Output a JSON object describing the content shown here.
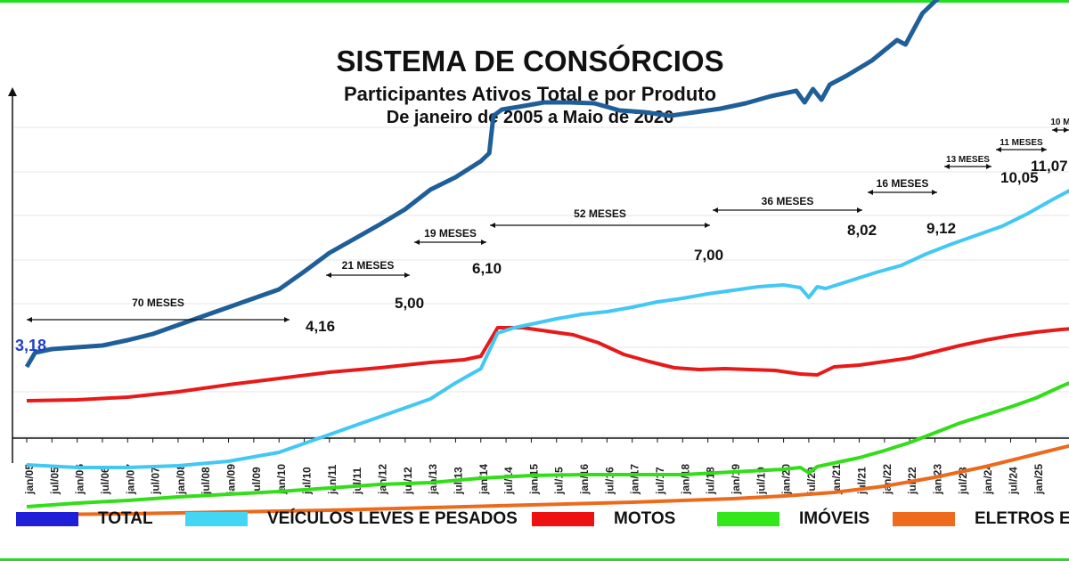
{
  "chart_data": {
    "type": "line",
    "title": "SISTEMA DE CONSÓRCIOS",
    "subtitle": "Participantes Ativos Total e por Produto",
    "subtitle2": "De janeiro de 2005 a Maio de 2026",
    "x_tick_labels": [
      "jan/05",
      "jul/05",
      "jan/06",
      "jul/06",
      "jan/07",
      "jul/07",
      "jan/08",
      "jul/08",
      "jan/09",
      "jul/09",
      "jan/10",
      "jul/10",
      "jan/11",
      "jul/11",
      "jan/12",
      "jul/12",
      "jan/13",
      "jul/13",
      "jan/14",
      "jul/14",
      "jan/15",
      "jul/15",
      "jan/16",
      "jul/16",
      "jan/17",
      "jul/17",
      "jan/18",
      "jul/18",
      "jan/19",
      "jul/19",
      "jan/20",
      "jul/20",
      "jan/21",
      "jul/21",
      "jan/22",
      "jul/22",
      "jan/23",
      "jul/23",
      "jan/24",
      "jul/24",
      "jan/25"
    ],
    "y_tick_labels": [
      "",
      "",
      "",
      "",
      "",
      "",
      "",
      "",
      ""
    ],
    "grid": true,
    "legend_position": "bottom",
    "series": [
      {
        "name": "TOTAL",
        "color": "#1f5f99",
        "values": [
          [
            0,
            3.18
          ],
          [
            2,
            3.34
          ],
          [
            6,
            3.38
          ],
          [
            12,
            3.4
          ],
          [
            18,
            3.42
          ],
          [
            24,
            3.48
          ],
          [
            30,
            3.55
          ],
          [
            36,
            3.65
          ],
          [
            42,
            3.75
          ],
          [
            48,
            3.85
          ],
          [
            54,
            3.95
          ],
          [
            60,
            4.05
          ],
          [
            66,
            4.25
          ],
          [
            72,
            4.46
          ],
          [
            78,
            4.62
          ],
          [
            84,
            4.78
          ],
          [
            90,
            4.95
          ],
          [
            96,
            5.17
          ],
          [
            102,
            5.31
          ],
          [
            108,
            5.49
          ],
          [
            110,
            5.58
          ],
          [
            111,
            6.0
          ],
          [
            113,
            6.07
          ],
          [
            117,
            6.1
          ],
          [
            123,
            6.15
          ],
          [
            129,
            6.15
          ],
          [
            135,
            6.14
          ],
          [
            141,
            6.06
          ],
          [
            147,
            6.04
          ],
          [
            153,
            6.0
          ],
          [
            159,
            6.04
          ],
          [
            165,
            6.08
          ],
          [
            171,
            6.14
          ],
          [
            177,
            6.22
          ],
          [
            183,
            6.28
          ],
          [
            185,
            6.15
          ],
          [
            187,
            6.3
          ],
          [
            189,
            6.18
          ],
          [
            191,
            6.35
          ],
          [
            195,
            6.45
          ],
          [
            201,
            6.62
          ],
          [
            207,
            6.85
          ],
          [
            209,
            6.8
          ],
          [
            213,
            7.15
          ],
          [
            219,
            7.42
          ],
          [
            225,
            7.7
          ],
          [
            231,
            7.95
          ],
          [
            237,
            8.2
          ],
          [
            243,
            8.5
          ],
          [
            249,
            8.72
          ],
          [
            255,
            8.92
          ],
          [
            258,
            9.05
          ],
          [
            264,
            9.3
          ],
          [
            270,
            9.5
          ]
        ]
      },
      {
        "name": "VEÍCULOS LEVES E PESADOS",
        "color": "#43c8f4",
        "values": [
          [
            0,
            2.08
          ],
          [
            12,
            2.05
          ],
          [
            24,
            2.05
          ],
          [
            36,
            2.07
          ],
          [
            48,
            2.12
          ],
          [
            60,
            2.22
          ],
          [
            72,
            2.42
          ],
          [
            84,
            2.62
          ],
          [
            96,
            2.82
          ],
          [
            102,
            3.0
          ],
          [
            108,
            3.16
          ],
          [
            112,
            3.56
          ],
          [
            116,
            3.62
          ],
          [
            120,
            3.66
          ],
          [
            126,
            3.72
          ],
          [
            132,
            3.77
          ],
          [
            138,
            3.8
          ],
          [
            144,
            3.85
          ],
          [
            150,
            3.91
          ],
          [
            156,
            3.95
          ],
          [
            162,
            4.0
          ],
          [
            168,
            4.04
          ],
          [
            174,
            4.08
          ],
          [
            180,
            4.1
          ],
          [
            184,
            4.07
          ],
          [
            186,
            3.96
          ],
          [
            188,
            4.08
          ],
          [
            190,
            4.06
          ],
          [
            196,
            4.15
          ],
          [
            202,
            4.24
          ],
          [
            208,
            4.32
          ],
          [
            214,
            4.45
          ],
          [
            220,
            4.56
          ],
          [
            226,
            4.66
          ],
          [
            232,
            4.76
          ],
          [
            238,
            4.9
          ],
          [
            244,
            5.06
          ],
          [
            250,
            5.21
          ],
          [
            256,
            5.36
          ],
          [
            262,
            5.53
          ],
          [
            268,
            5.68
          ],
          [
            270,
            5.72
          ]
        ]
      },
      {
        "name": "MOTOS",
        "color": "#e81919",
        "values": [
          [
            0,
            2.8
          ],
          [
            12,
            2.81
          ],
          [
            24,
            2.84
          ],
          [
            36,
            2.9
          ],
          [
            48,
            2.98
          ],
          [
            60,
            3.05
          ],
          [
            72,
            3.12
          ],
          [
            84,
            3.17
          ],
          [
            96,
            3.23
          ],
          [
            104,
            3.26
          ],
          [
            108,
            3.3
          ],
          [
            112,
            3.62
          ],
          [
            118,
            3.62
          ],
          [
            124,
            3.58
          ],
          [
            130,
            3.54
          ],
          [
            136,
            3.45
          ],
          [
            142,
            3.32
          ],
          [
            148,
            3.24
          ],
          [
            154,
            3.17
          ],
          [
            160,
            3.15
          ],
          [
            166,
            3.16
          ],
          [
            172,
            3.15
          ],
          [
            178,
            3.14
          ],
          [
            184,
            3.1
          ],
          [
            188,
            3.09
          ],
          [
            192,
            3.18
          ],
          [
            198,
            3.2
          ],
          [
            204,
            3.24
          ],
          [
            210,
            3.28
          ],
          [
            216,
            3.35
          ],
          [
            222,
            3.42
          ],
          [
            228,
            3.48
          ],
          [
            234,
            3.53
          ],
          [
            240,
            3.57
          ],
          [
            246,
            3.6
          ],
          [
            252,
            3.62
          ],
          [
            258,
            3.64
          ],
          [
            264,
            3.66
          ],
          [
            270,
            3.68
          ]
        ]
      },
      {
        "name": "IMÓVEIS",
        "color": "#33dd1a",
        "values": [
          [
            0,
            1.61
          ],
          [
            12,
            1.65
          ],
          [
            24,
            1.68
          ],
          [
            36,
            1.72
          ],
          [
            48,
            1.75
          ],
          [
            60,
            1.78
          ],
          [
            72,
            1.82
          ],
          [
            84,
            1.86
          ],
          [
            96,
            1.88
          ],
          [
            108,
            1.93
          ],
          [
            120,
            1.96
          ],
          [
            132,
            1.97
          ],
          [
            144,
            1.97
          ],
          [
            156,
            1.97
          ],
          [
            168,
            2.0
          ],
          [
            180,
            2.03
          ],
          [
            184,
            2.05
          ],
          [
            186,
            1.99
          ],
          [
            188,
            2.06
          ],
          [
            192,
            2.1
          ],
          [
            198,
            2.16
          ],
          [
            204,
            2.24
          ],
          [
            210,
            2.33
          ],
          [
            216,
            2.44
          ],
          [
            222,
            2.55
          ],
          [
            228,
            2.64
          ],
          [
            234,
            2.73
          ],
          [
            240,
            2.83
          ],
          [
            246,
            2.96
          ],
          [
            252,
            3.08
          ],
          [
            258,
            3.2
          ],
          [
            264,
            3.3
          ],
          [
            270,
            3.38
          ]
        ]
      },
      {
        "name": "ELETROS E SERVIÇOS",
        "color": "#ec6a1c",
        "values": [
          [
            0,
            1.52
          ],
          [
            24,
            1.53
          ],
          [
            48,
            1.55
          ],
          [
            72,
            1.57
          ],
          [
            96,
            1.6
          ],
          [
            120,
            1.63
          ],
          [
            144,
            1.66
          ],
          [
            168,
            1.7
          ],
          [
            180,
            1.73
          ],
          [
            192,
            1.77
          ],
          [
            204,
            1.84
          ],
          [
            216,
            1.94
          ],
          [
            228,
            2.06
          ],
          [
            240,
            2.2
          ],
          [
            252,
            2.34
          ],
          [
            264,
            2.47
          ],
          [
            270,
            2.52
          ]
        ]
      }
    ],
    "annotations": {
      "values": [
        {
          "label": "3,18",
          "color": "#1f3fc8"
        },
        {
          "label": "4,16"
        },
        {
          "label": "5,00"
        },
        {
          "label": "6,10"
        },
        {
          "label": "7,00"
        },
        {
          "label": "8,02"
        },
        {
          "label": "9,12"
        },
        {
          "label": "10,05"
        },
        {
          "label": "11,07"
        }
      ],
      "intervals": [
        {
          "label": "70 MESES"
        },
        {
          "label": "21 MESES"
        },
        {
          "label": "19 MESES"
        },
        {
          "label": "52 MESES"
        },
        {
          "label": "36 MESES"
        },
        {
          "label": "16 MESES"
        },
        {
          "label": "13 MESES"
        },
        {
          "label": "11 MESES"
        },
        {
          "label": "10 M"
        }
      ]
    }
  },
  "legend": [
    {
      "label": "TOTAL",
      "color": "#1f1fd8"
    },
    {
      "label": "VEÍCULOS LEVES E PESADOS",
      "color": "#43d6f4"
    },
    {
      "label": "MOTOS",
      "color": "#ee1111"
    },
    {
      "label": "IMÓVEIS",
      "color": "#33e81a"
    },
    {
      "label": "ELETROS E S",
      "color": "#ee6a1c"
    }
  ]
}
